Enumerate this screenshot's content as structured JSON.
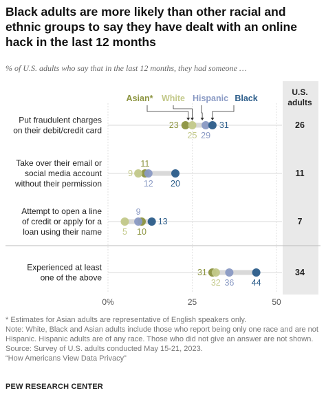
{
  "title": "Black adults are more likely than other racial and ethnic groups to say they have dealt with an online hack in the last 12 months",
  "subtitle": "% of U.S. adults who say that in the last 12 months, they had someone …",
  "colors": {
    "Asian": "#8c9440",
    "White": "#c3c98a",
    "Hispanic": "#8a9ac4",
    "Black": "#2c5d8a",
    "track": "#d9d9d9",
    "total_bg": "#e9e9e9"
  },
  "notes": [
    "* Estimates for Asian adults are representative of English speakers only.",
    "Note: White, Black and Asian adults include those who report being only one race and are not Hispanic. Hispanic adults are of any race. Those who did not give an answer are not shown.",
    "Source: Survey of U.S. adults conducted May 15-21, 2023.",
    "“How Americans View Data Privacy”"
  ],
  "brand": "PEW RESEARCH CENTER",
  "chart_data": {
    "type": "dot",
    "total_header": [
      "U.S.",
      "adults"
    ],
    "legend": [
      "Asian*",
      "White",
      "Hispanic",
      "Black"
    ],
    "series_keys": [
      "Asian",
      "White",
      "Hispanic",
      "Black"
    ],
    "xlim": [
      0,
      50
    ],
    "xticks": [
      0,
      25,
      50
    ],
    "xtick_labels": [
      "0%",
      "25",
      "50"
    ],
    "rows": [
      {
        "label": [
          "Put fraudulent charges",
          "on their debit/credit card"
        ],
        "values": {
          "Asian": 23,
          "White": 25,
          "Hispanic": 29,
          "Black": 31
        },
        "total": 26
      },
      {
        "label": [
          "Take over their email or",
          "social media account",
          "without their permission"
        ],
        "values": {
          "Asian": 11,
          "White": 9,
          "Hispanic": 12,
          "Black": 20
        },
        "total": 11
      },
      {
        "label": [
          "Attempt to open a line",
          "of credit or apply for a",
          "loan using their name"
        ],
        "values": {
          "Asian": 10,
          "White": 5,
          "Hispanic": 9,
          "Black": 13
        },
        "total": 7
      },
      {
        "label": [
          "Experienced at least",
          "one of the above"
        ],
        "values": {
          "Asian": 31,
          "White": 32,
          "Hispanic": 36,
          "Black": 44
        },
        "total": 34
      }
    ]
  }
}
